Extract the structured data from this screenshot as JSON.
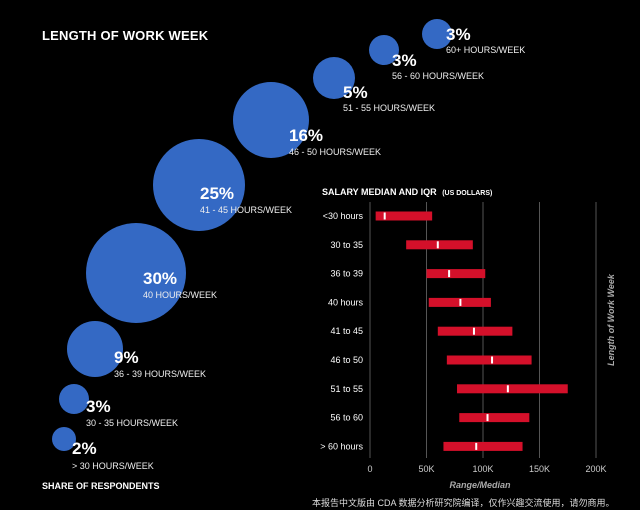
{
  "bubble_chart": {
    "title": "LENGTH OF WORK WEEK",
    "footer_label": "SHARE OF RESPONDENTS",
    "items": [
      {
        "percent": "2%",
        "label": "> 30 HOURS/WEEK"
      },
      {
        "percent": "3%",
        "label": "30 - 35 HOURS/WEEK"
      },
      {
        "percent": "9%",
        "label": "36 - 39 HOURS/WEEK"
      },
      {
        "percent": "30%",
        "label": "40 HOURS/WEEK"
      },
      {
        "percent": "25%",
        "label": "41 - 45 HOURS/WEEK"
      },
      {
        "percent": "16%",
        "label": "46 - 50 HOURS/WEEK"
      },
      {
        "percent": "5%",
        "label": "51 - 55 HOURS/WEEK"
      },
      {
        "percent": "3%",
        "label": "56 - 60 HOURS/WEEK"
      },
      {
        "percent": "3%",
        "label": "60+ HOURS/WEEK"
      }
    ],
    "color": "#3469c4"
  },
  "chart_data": {
    "type": "bar",
    "subtype": "range-with-median",
    "title": "SALARY MEDIAN AND IQR",
    "title_unit": "(US DOLLARS)",
    "xlabel": "Range/Median",
    "ylabel": "Length of Work Week",
    "xlim": [
      0,
      200000
    ],
    "x_ticks": [
      0,
      50000,
      100000,
      150000,
      200000
    ],
    "x_tick_labels": [
      "0",
      "50K",
      "100K",
      "150K",
      "200K"
    ],
    "grid": "vertical",
    "categories": [
      "<30 hours",
      "30 to 35",
      "36 to 39",
      "40 hours",
      "41 to 45",
      "46 to 50",
      "51 to 55",
      "56 to 60",
      "> 60 hours"
    ],
    "low": [
      5000,
      32000,
      50000,
      52000,
      60000,
      68000,
      77000,
      79000,
      65000
    ],
    "high": [
      55000,
      91000,
      102000,
      107000,
      126000,
      143000,
      175000,
      141000,
      135000
    ],
    "median": [
      13000,
      60000,
      70000,
      80000,
      92000,
      108000,
      122000,
      104000,
      94000
    ],
    "bar_color": "#d4102a",
    "median_color": "#ffffff"
  },
  "footnote": "本报告中文版由 CDA 数据分析研究院编译，仅作兴趣交流使用，请勿商用。"
}
